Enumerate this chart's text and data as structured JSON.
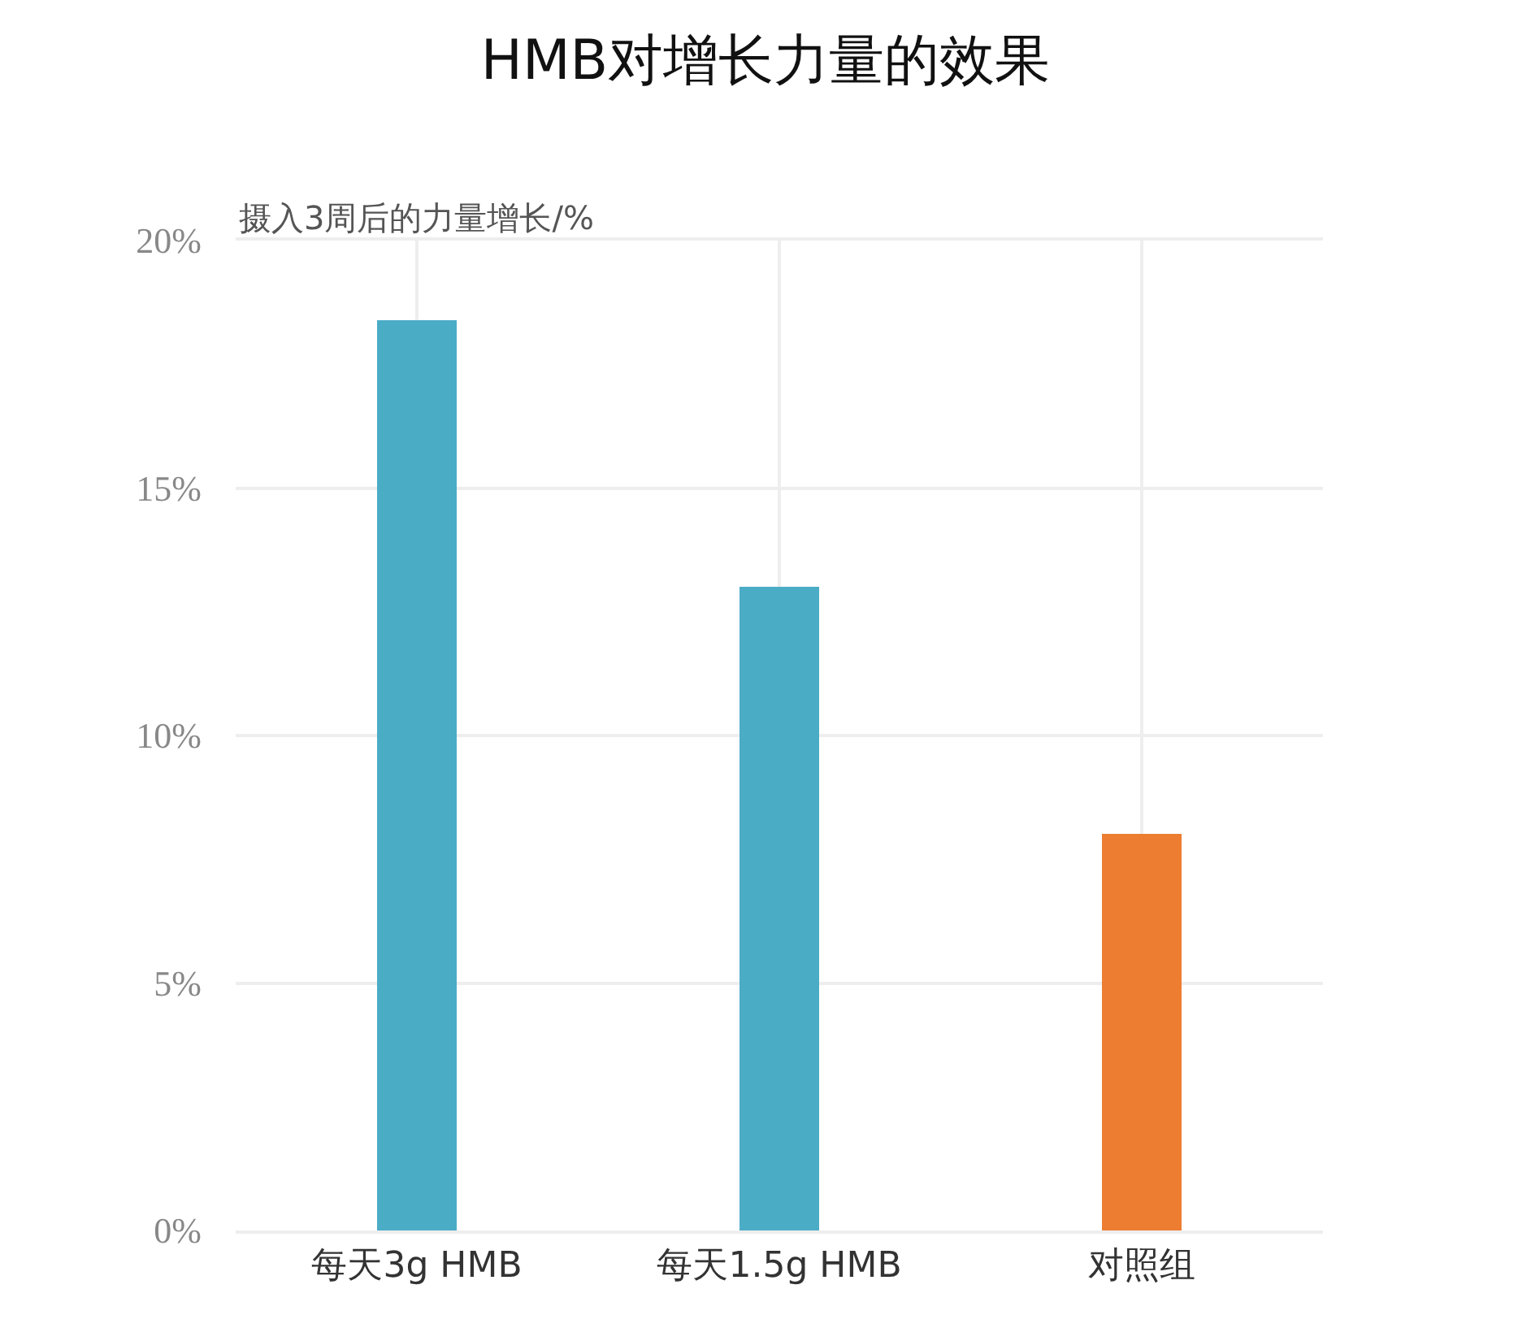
{
  "chart_data": {
    "type": "bar",
    "title": "HMB对增长力量的效果",
    "ylabel": "摄入3周后的力量增长/%",
    "categories": [
      "每天3g HMB",
      "每天1.5g HMB",
      "对照组"
    ],
    "values": [
      18.4,
      13,
      8
    ],
    "colors": [
      "#4bacc6",
      "#4bacc6",
      "#ed7d31"
    ],
    "ylim": [
      0,
      20
    ],
    "yticks": [
      {
        "value": 0,
        "label": "0%"
      },
      {
        "value": 5,
        "label": "5%"
      },
      {
        "value": 10,
        "label": "10%"
      },
      {
        "value": 15,
        "label": "15%"
      },
      {
        "value": 20,
        "label": "20%"
      }
    ],
    "grid": true
  }
}
